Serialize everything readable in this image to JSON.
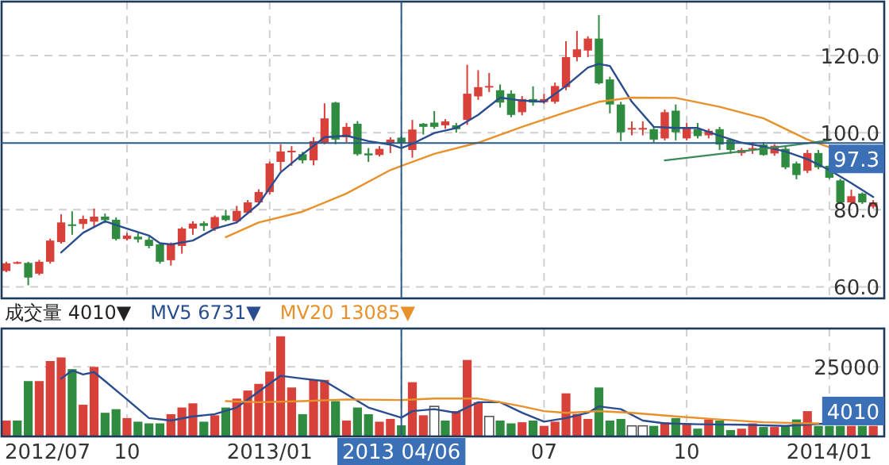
{
  "chart_data": [
    {
      "type": "candlestick",
      "x": [
        "2012-07-28",
        "2012-08-04",
        "2012-08-11",
        "2012-08-18",
        "2012-08-25",
        "2012-09-01",
        "2012-09-08",
        "2012-09-15",
        "2012-09-22",
        "2012-09-29",
        "2012-10-06",
        "2012-10-13",
        "2012-10-20",
        "2012-10-27",
        "2012-11-03",
        "2012-11-10",
        "2012-11-17",
        "2012-11-24",
        "2012-12-01",
        "2012-12-08",
        "2012-12-15",
        "2012-12-22",
        "2012-12-29",
        "2013-01-05",
        "2013-01-12",
        "2013-01-19",
        "2013-01-26",
        "2013-02-02",
        "2013-02-09",
        "2013-02-16",
        "2013-02-23",
        "2013-03-02",
        "2013-03-09",
        "2013-03-16",
        "2013-03-23",
        "2013-03-30",
        "2013-04-06",
        "2013-04-13",
        "2013-04-20",
        "2013-04-27",
        "2013-05-04",
        "2013-05-11",
        "2013-05-18",
        "2013-05-25",
        "2013-06-01",
        "2013-06-08",
        "2013-06-15",
        "2013-06-22",
        "2013-06-29",
        "2013-07-06",
        "2013-07-13",
        "2013-07-20",
        "2013-07-27",
        "2013-08-03",
        "2013-08-10",
        "2013-08-17",
        "2013-08-24",
        "2013-08-31",
        "2013-09-07",
        "2013-09-14",
        "2013-09-21",
        "2013-09-28",
        "2013-10-05",
        "2013-10-12",
        "2013-10-19",
        "2013-10-26",
        "2013-11-02",
        "2013-11-09",
        "2013-11-16",
        "2013-11-23",
        "2013-11-30",
        "2013-12-07",
        "2013-12-14",
        "2013-12-21",
        "2013-12-28",
        "2014-01-04",
        "2014-01-11",
        "2014-01-18",
        "2014-01-25",
        "2014-02-01"
      ],
      "ohlc": [
        [
          64.1,
          66.5,
          63.8,
          66.1
        ],
        [
          66.2,
          66.6,
          65.9,
          66.4
        ],
        [
          66.2,
          66.5,
          60.4,
          62.4
        ],
        [
          63.4,
          67.0,
          63.0,
          66.5
        ],
        [
          66.5,
          72.5,
          66.0,
          72.0
        ],
        [
          71.6,
          78.8,
          71.2,
          76.7
        ],
        [
          76.2,
          79.6,
          73.5,
          75.9
        ],
        [
          76.3,
          78.5,
          75.0,
          77.6
        ],
        [
          76.9,
          80.3,
          75.5,
          78.2
        ],
        [
          78.2,
          79.0,
          76.5,
          77.3
        ],
        [
          77.4,
          78.0,
          72.0,
          72.4
        ],
        [
          72.4,
          74.0,
          72.0,
          73.3
        ],
        [
          73.0,
          74.0,
          71.5,
          72.3
        ],
        [
          72.2,
          73.0,
          70.0,
          70.6
        ],
        [
          71.0,
          71.5,
          66.0,
          66.5
        ],
        [
          66.9,
          71.5,
          65.5,
          71.0
        ],
        [
          70.6,
          75.5,
          68.6,
          75.1
        ],
        [
          75.1,
          77.0,
          73.5,
          76.4
        ],
        [
          76.5,
          77.0,
          74.5,
          75.8
        ],
        [
          75.1,
          78.5,
          74.5,
          78.1
        ],
        [
          78.5,
          80.0,
          77.0,
          77.3
        ],
        [
          77.0,
          81.0,
          76.5,
          79.7
        ],
        [
          79.2,
          82.5,
          78.8,
          81.9
        ],
        [
          81.9,
          85.3,
          81.5,
          84.6
        ],
        [
          84.6,
          92.5,
          84.0,
          92.0
        ],
        [
          92.4,
          97.0,
          90.0,
          95.1
        ],
        [
          95.0,
          96.5,
          91.4,
          95.3
        ],
        [
          94.4,
          95.0,
          92.0,
          92.8
        ],
        [
          92.8,
          98.8,
          91.5,
          97.8
        ],
        [
          97.4,
          107.6,
          97.0,
          103.7
        ],
        [
          107.8,
          108.0,
          97.0,
          98.2
        ],
        [
          98.8,
          102.5,
          97.5,
          101.5
        ],
        [
          102.3,
          103.0,
          94.0,
          94.4
        ],
        [
          94.6,
          96.0,
          92.4,
          94.1
        ],
        [
          94.2,
          96.5,
          93.8,
          95.8
        ],
        [
          97.1,
          98.8,
          94.7,
          98.2
        ],
        [
          98.7,
          99.0,
          96.0,
          97.3
        ],
        [
          95.5,
          103.3,
          93.5,
          100.8
        ],
        [
          102.3,
          102.5,
          99.5,
          101.5
        ],
        [
          102.6,
          105.6,
          101.0,
          101.5
        ],
        [
          101.9,
          103.5,
          101.0,
          102.9
        ],
        [
          101.9,
          102.5,
          100.0,
          100.9
        ],
        [
          103.3,
          117.6,
          102.0,
          110.1
        ],
        [
          109.4,
          116.2,
          108.5,
          111.8
        ],
        [
          111.9,
          115.5,
          110.5,
          112.1
        ],
        [
          111.0,
          112.5,
          106.5,
          107.8
        ],
        [
          110.1,
          111.0,
          104.0,
          104.6
        ],
        [
          105.3,
          109.5,
          104.5,
          108.7
        ],
        [
          108.7,
          112.0,
          107.0,
          107.8
        ],
        [
          107.9,
          110.0,
          107.5,
          108.7
        ],
        [
          108.0,
          113.0,
          107.5,
          112.1
        ],
        [
          111.8,
          123.7,
          111.0,
          119.6
        ],
        [
          119.6,
          126.4,
          118.5,
          121.6
        ],
        [
          121.3,
          125.0,
          119.6,
          124.4
        ],
        [
          124.4,
          130.5,
          112.5,
          112.8
        ],
        [
          113.8,
          114.5,
          105.0,
          107.3
        ],
        [
          107.3,
          108.0,
          97.8,
          100.1
        ],
        [
          101.1,
          102.9,
          99.3,
          101.2
        ],
        [
          101.1,
          102.9,
          99.3,
          101.2
        ],
        [
          100.9,
          101.5,
          97.5,
          98.2
        ],
        [
          98.5,
          106.0,
          98.0,
          105.3
        ],
        [
          105.7,
          107.3,
          98.0,
          100.1
        ],
        [
          98.5,
          102.5,
          98.0,
          101.2
        ],
        [
          100.9,
          102.5,
          98.5,
          99.1
        ],
        [
          99.3,
          101.0,
          98.5,
          100.5
        ],
        [
          100.9,
          101.5,
          95.5,
          96.9
        ],
        [
          98.2,
          98.5,
          94.5,
          95.5
        ],
        [
          94.7,
          96.0,
          94.0,
          95.5
        ],
        [
          95.7,
          97.5,
          94.5,
          96.0
        ],
        [
          96.9,
          97.5,
          94.0,
          94.2
        ],
        [
          94.6,
          97.0,
          94.0,
          96.6
        ],
        [
          95.8,
          96.5,
          90.5,
          91.0
        ],
        [
          92.0,
          92.5,
          87.9,
          89.0
        ],
        [
          90.1,
          95.5,
          89.5,
          94.7
        ],
        [
          94.7,
          95.5,
          90.5,
          91.0
        ],
        [
          91.4,
          91.8,
          88.0,
          88.3
        ],
        [
          87.6,
          88.0,
          81.5,
          81.9
        ],
        [
          81.9,
          85.2,
          81.5,
          83.5
        ],
        [
          84.2,
          84.5,
          81.5,
          81.9
        ],
        [
          80.8,
          82.5,
          80.3,
          81.9
        ]
      ],
      "colors": [
        "#d8403a",
        "#d8403a",
        "#2e8b3f",
        "#d8403a",
        "#d8403a",
        "#d8403a",
        "#2e8b3f",
        "#d8403a",
        "#d8403a",
        "#2e8b3f",
        "#2e8b3f",
        "#d8403a",
        "#2e8b3f",
        "#2e8b3f",
        "#2e8b3f",
        "#d8403a",
        "#d8403a",
        "#d8403a",
        "#2e8b3f",
        "#d8403a",
        "#2e8b3f",
        "#d8403a",
        "#d8403a",
        "#d8403a",
        "#d8403a",
        "#d8403a",
        "#d8403a",
        "#2e8b3f",
        "#d8403a",
        "#d8403a",
        "#2e8b3f",
        "#d8403a",
        "#2e8b3f",
        "#2e8b3f",
        "#d8403a",
        "#d8403a",
        "#2e8b3f",
        "#d8403a",
        "#2e8b3f",
        "#2e8b3f",
        "#d8403a",
        "#2e8b3f",
        "#d8403a",
        "#d8403a",
        "#d8403a",
        "#2e8b3f",
        "#2e8b3f",
        "#d8403a",
        "#2e8b3f",
        "#d8403a",
        "#d8403a",
        "#d8403a",
        "#d8403a",
        "#d8403a",
        "#2e8b3f",
        "#2e8b3f",
        "#2e8b3f",
        "#d8403a",
        "#d8403a",
        "#2e8b3f",
        "#d8403a",
        "#2e8b3f",
        "#d8403a",
        "#2e8b3f",
        "#d8403a",
        "#2e8b3f",
        "#2e8b3f",
        "#d8403a",
        "#d8403a",
        "#2e8b3f",
        "#d8403a",
        "#2e8b3f",
        "#2e8b3f",
        "#d8403a",
        "#2e8b3f",
        "#2e8b3f",
        "#2e8b3f",
        "#d8403a",
        "#2e8b3f",
        "#d8403a"
      ],
      "series": [
        {
          "type": "line",
          "color": "#2a4d8f",
          "x": [
            "2012-09-01",
            "2012-09-15",
            "2012-09-29",
            "2012-10-13",
            "2012-10-27",
            "2012-11-03",
            "2012-11-10",
            "2012-11-24",
            "2012-12-08",
            "2012-12-22",
            "2013-01-05",
            "2013-01-19",
            "2013-02-02",
            "2013-02-16",
            "2013-03-02",
            "2013-03-16",
            "2013-03-30",
            "2013-04-06",
            "2013-04-13",
            "2013-04-27",
            "2013-05-11",
            "2013-05-25",
            "2013-06-08",
            "2013-06-22",
            "2013-07-06",
            "2013-07-20",
            "2013-08-03",
            "2013-08-10",
            "2013-08-17",
            "2013-08-31",
            "2013-09-14",
            "2013-09-28",
            "2013-10-12",
            "2013-10-26",
            "2013-11-09",
            "2013-11-23",
            "2013-12-07",
            "2013-12-21",
            "2014-01-04",
            "2014-01-18",
            "2014-02-01"
          ],
          "values": [
            68.9,
            74.0,
            77.0,
            75.1,
            73.3,
            71.3,
            71.0,
            72.0,
            75.1,
            76.7,
            81.5,
            89.7,
            94.4,
            98.8,
            99.2,
            97.8,
            96.9,
            96.0,
            97.1,
            99.9,
            101.2,
            104.6,
            109.1,
            108.3,
            108.0,
            112.1,
            116.9,
            117.8,
            117.3,
            108.0,
            101.5,
            101.2,
            101.2,
            99.2,
            97.4,
            96.4,
            95.1,
            93.1,
            90.3,
            86.9,
            83.3
          ]
        },
        {
          "type": "line",
          "color": "#e8902a",
          "x": [
            "2012-12-15",
            "2013-01-05",
            "2013-02-02",
            "2013-03-02",
            "2013-03-30",
            "2013-04-27",
            "2013-05-25",
            "2013-06-22",
            "2013-07-20",
            "2013-08-10",
            "2013-08-31",
            "2013-09-28",
            "2013-10-26",
            "2013-11-23",
            "2013-12-21",
            "2014-01-04"
          ],
          "values": [
            72.9,
            76.7,
            79.5,
            84.2,
            90.3,
            94.5,
            97.4,
            101.5,
            105.3,
            108.0,
            109.1,
            109.0,
            106.7,
            103.7,
            98.2,
            96.2
          ]
        },
        {
          "type": "line",
          "color": "#3a8a5a",
          "x": [
            "2013-09-21",
            "2013-11-02",
            "2013-12-07",
            "2014-01-04"
          ],
          "values": [
            92.8,
            94.8,
            96.5,
            98.0
          ]
        }
      ],
      "xlim": [
        "2012-07-25",
        "2014-02-08"
      ],
      "ylim": [
        57,
        134
      ],
      "xticks": [
        {
          "value": "2012-10-13",
          "label": null
        },
        {
          "value": "2013-01-12",
          "label": null
        },
        {
          "value": "2013-04-06",
          "label": null
        },
        {
          "value": "2013-07-06",
          "label": null
        },
        {
          "value": "2013-10-05",
          "label": null
        },
        {
          "value": "2014-01-04",
          "label": null
        }
      ],
      "yticks": [
        {
          "value": 60,
          "label": "60.0"
        },
        {
          "value": 80,
          "label": "80.0"
        },
        {
          "value": 100,
          "label": "100.0"
        },
        {
          "value": 120,
          "label": "120.0"
        }
      ],
      "grid": true,
      "tick_labels": "y",
      "ref_lines": [
        {
          "axis": "y",
          "value": 97.3,
          "label": "97.3",
          "color": "#2a5a8a"
        },
        {
          "axis": "x",
          "value": "2013-04-06",
          "label": null,
          "color": "#2a5a8a"
        }
      ]
    },
    {
      "type": "bar",
      "x": [
        "2012-07-28",
        "2012-08-04",
        "2012-08-11",
        "2012-08-18",
        "2012-08-25",
        "2012-09-01",
        "2012-09-08",
        "2012-09-15",
        "2012-09-22",
        "2012-09-29",
        "2012-10-06",
        "2012-10-13",
        "2012-10-20",
        "2012-10-27",
        "2012-11-03",
        "2012-11-10",
        "2012-11-17",
        "2012-11-24",
        "2012-12-01",
        "2012-12-08",
        "2012-12-15",
        "2012-12-22",
        "2012-12-29",
        "2013-01-05",
        "2013-01-12",
        "2013-01-19",
        "2013-01-26",
        "2013-02-02",
        "2013-02-09",
        "2013-02-16",
        "2013-02-23",
        "2013-03-02",
        "2013-03-09",
        "2013-03-16",
        "2013-03-23",
        "2013-03-30",
        "2013-04-06",
        "2013-04-13",
        "2013-04-20",
        "2013-04-27",
        "2013-05-04",
        "2013-05-11",
        "2013-05-18",
        "2013-05-25",
        "2013-06-01",
        "2013-06-08",
        "2013-06-15",
        "2013-06-22",
        "2013-06-29",
        "2013-07-06",
        "2013-07-13",
        "2013-07-20",
        "2013-07-27",
        "2013-08-03",
        "2013-08-10",
        "2013-08-17",
        "2013-08-24",
        "2013-08-31",
        "2013-09-07",
        "2013-09-14",
        "2013-09-21",
        "2013-09-28",
        "2013-10-05",
        "2013-10-12",
        "2013-10-19",
        "2013-10-26",
        "2013-11-02",
        "2013-11-09",
        "2013-11-16",
        "2013-11-23",
        "2013-11-30",
        "2013-12-07",
        "2013-12-14",
        "2013-12-21",
        "2013-12-28",
        "2014-01-04",
        "2014-01-11",
        "2014-01-18",
        "2014-01-25",
        "2014-02-01"
      ],
      "series": [
        {
          "name": "成交量 4010▼",
          "values": [
            5700,
            5700,
            19900,
            19900,
            27100,
            28400,
            24200,
            11400,
            25000,
            8500,
            9800,
            6600,
            5300,
            4700,
            4700,
            8000,
            10400,
            11900,
            5300,
            7600,
            10400,
            13600,
            16500,
            18900,
            23300,
            36000,
            17600,
            8000,
            20300,
            20300,
            12700,
            5700,
            10400,
            8000,
            5300,
            6300,
            4010,
            19500,
            7600,
            10800,
            5700,
            9100,
            27500,
            12300,
            7200,
            5700,
            4700,
            5100,
            5700,
            3800,
            5300,
            15500,
            8100,
            6300,
            17600,
            5700,
            6300,
            3800,
            3800,
            3800,
            5100,
            6600,
            4700,
            2800,
            6100,
            5700,
            2300,
            2800,
            4700,
            3400,
            3400,
            3800,
            6100,
            9100,
            3800,
            3800,
            3800,
            3800,
            3800,
            3800
          ],
          "colors": [
            "#d8403a",
            "#2e8b3f",
            "#2e8b3f",
            "#d8403a",
            "#d8403a",
            "#d8403a",
            "#2e8b3f",
            "#d8403a",
            "#d8403a",
            "#2e8b3f",
            "#2e8b3f",
            "#d8403a",
            "#2e8b3f",
            "#2e8b3f",
            "#2e8b3f",
            "#d8403a",
            "#d8403a",
            "#d8403a",
            "#2e8b3f",
            "#d8403a",
            "#2e8b3f",
            "#d8403a",
            "#d8403a",
            "#d8403a",
            "#d8403a",
            "#d8403a",
            "#d8403a",
            "#2e8b3f",
            "#d8403a",
            "#d8403a",
            "#2e8b3f",
            "#d8403a",
            "#2e8b3f",
            "#2e8b3f",
            "#d8403a",
            "#d8403a",
            "#2e8b3f",
            "#d8403a",
            "#d8403a",
            "#ffffff",
            "#2e8b3f",
            "#d8403a",
            "#d8403a",
            "#d8403a",
            "#ffffff",
            "#2e8b3f",
            "#2e8b3f",
            "#d8403a",
            "#2e8b3f",
            "#d8403a",
            "#d8403a",
            "#d8403a",
            "#d8403a",
            "#d8403a",
            "#2e8b3f",
            "#2e8b3f",
            "#2e8b3f",
            "#ffffff",
            "#ffffff",
            "#2e8b3f",
            "#d8403a",
            "#2e8b3f",
            "#d8403a",
            "#2e8b3f",
            "#d8403a",
            "#2e8b3f",
            "#2e8b3f",
            "#d8403a",
            "#d8403a",
            "#2e8b3f",
            "#d8403a",
            "#2e8b3f",
            "#2e8b3f",
            "#d8403a",
            "#2e8b3f",
            "#2e8b3f",
            "#2e8b3f",
            "#d8403a",
            "#2e8b3f",
            "#d8403a"
          ]
        },
        {
          "name": "MV5 6731▼",
          "type": "line",
          "color": "#2a4d8f",
          "x": [
            "2012-09-01",
            "2012-09-08",
            "2012-09-15",
            "2012-09-22",
            "2012-09-29",
            "2012-10-13",
            "2012-10-27",
            "2012-11-10",
            "2012-11-24",
            "2012-12-08",
            "2012-12-22",
            "2013-01-05",
            "2013-01-19",
            "2013-02-02",
            "2013-02-16",
            "2013-03-02",
            "2013-03-16",
            "2013-04-06",
            "2013-04-13",
            "2013-04-27",
            "2013-05-11",
            "2013-05-25",
            "2013-06-08",
            "2013-06-22",
            "2013-07-06",
            "2013-07-20",
            "2013-08-03",
            "2013-08-10",
            "2013-08-24",
            "2013-09-07",
            "2013-09-21",
            "2013-10-12",
            "2013-11-09",
            "2013-12-07",
            "2014-01-04",
            "2014-02-01"
          ],
          "values": [
            20800,
            23700,
            22300,
            23100,
            19900,
            13300,
            6600,
            5700,
            7200,
            8000,
            10400,
            16100,
            21800,
            20800,
            19900,
            15200,
            10400,
            6731,
            9100,
            9800,
            8500,
            12300,
            12300,
            8500,
            5300,
            6600,
            8500,
            10800,
            9800,
            5700,
            4700,
            4400,
            4200,
            3800,
            4700,
            4700
          ]
        },
        {
          "name": "MV20 13085▼",
          "type": "line",
          "color": "#e8902a",
          "x": [
            "2012-12-15",
            "2013-01-05",
            "2013-02-02",
            "2013-03-02",
            "2013-04-06",
            "2013-04-27",
            "2013-05-25",
            "2013-06-08",
            "2013-06-22",
            "2013-07-06",
            "2013-07-20",
            "2013-08-10",
            "2013-08-31",
            "2013-09-28",
            "2013-10-26",
            "2013-11-23",
            "2013-12-21",
            "2013-12-28"
          ],
          "values": [
            12700,
            12300,
            12700,
            13300,
            13085,
            13600,
            13600,
            12300,
            10800,
            9100,
            8500,
            9100,
            8500,
            7200,
            6100,
            5100,
            4700,
            4700
          ]
        }
      ],
      "xlim": [
        "2012-07-25",
        "2014-02-08"
      ],
      "ylim": [
        0,
        38800
      ],
      "xticks": [
        {
          "value": "2012-07-25",
          "label": "2012/07"
        },
        {
          "value": "2012-10-13",
          "label": "10"
        },
        {
          "value": "2013-01-12",
          "label": "2013/01"
        },
        {
          "value": "2013-04-06",
          "label": null
        },
        {
          "value": "2013-07-06",
          "label": "07"
        },
        {
          "value": "2013-10-05",
          "label": "10"
        },
        {
          "value": "2014-01-04",
          "label": "2014/01"
        }
      ],
      "yticks": [
        25000
      ],
      "grid": true,
      "legend": "top",
      "ref_lines": [
        {
          "axis": "x",
          "value": "2013-04-06",
          "label": "2013 04/06",
          "color": "#2a5a8a"
        }
      ],
      "annotations": [
        {
          "text": "4010",
          "y": 4010
        }
      ]
    }
  ]
}
